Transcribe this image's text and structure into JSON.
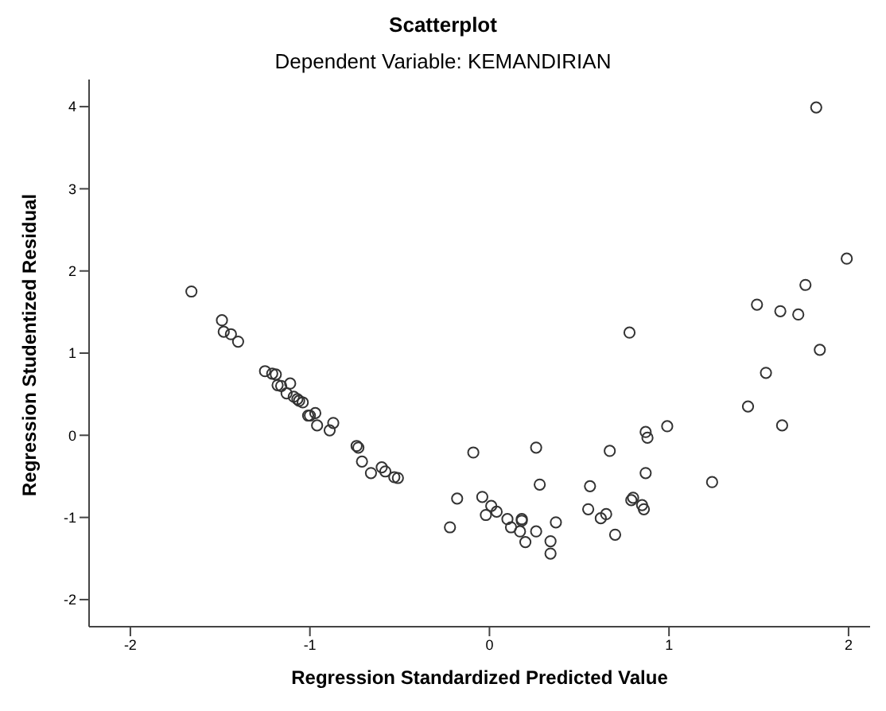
{
  "chart_data": {
    "type": "scatter",
    "title": "Scatterplot",
    "subtitle": "Dependent Variable: KEMANDIRIAN",
    "xlabel": "Regression Standardized Predicted Value",
    "ylabel": "Regression Studentized Residual",
    "marker": "circle",
    "grid": false,
    "xlim": [
      -2.23,
      2.12
    ],
    "ylim": [
      -2.33,
      4.33
    ],
    "xticks": [
      -2,
      -1,
      0,
      1,
      2
    ],
    "yticks": [
      -2,
      -1,
      0,
      1,
      2,
      3,
      4
    ],
    "series": [
      {
        "color": "#333333",
        "x": [
          -1.66,
          -1.49,
          -1.48,
          -1.44,
          -1.4,
          -1.25,
          -1.21,
          -1.19,
          -1.18,
          -1.16,
          -1.11,
          -1.13,
          -1.09,
          -1.07,
          -1.06,
          -1.04,
          -1.01,
          -1.0,
          -0.97,
          -0.96,
          -0.87,
          -0.89,
          -0.74,
          -0.73,
          -0.71,
          -0.66,
          -0.6,
          -0.58,
          -0.53,
          -0.51,
          -0.18,
          -0.09,
          -0.22,
          -0.04,
          -0.02,
          0.01,
          0.04,
          0.1,
          0.12,
          0.18,
          0.18,
          0.17,
          0.2,
          0.26,
          0.26,
          0.28,
          0.34,
          0.34,
          0.37,
          0.55,
          0.56,
          0.62,
          0.65,
          0.67,
          0.7,
          0.79,
          0.8,
          0.85,
          0.86,
          0.87,
          0.87,
          0.88,
          0.99,
          1.24,
          1.63,
          1.44,
          1.82,
          1.99,
          1.76,
          1.49,
          1.62,
          1.72,
          1.84,
          1.54,
          0.78
        ],
        "values": [
          1.75,
          1.4,
          1.26,
          1.23,
          1.14,
          0.78,
          0.75,
          0.74,
          0.61,
          0.6,
          0.63,
          0.51,
          0.47,
          0.44,
          0.42,
          0.4,
          0.24,
          0.24,
          0.27,
          0.12,
          0.15,
          0.06,
          -0.13,
          -0.15,
          -0.32,
          -0.46,
          -0.39,
          -0.44,
          -0.51,
          -0.52,
          -0.77,
          -0.21,
          -1.12,
          -0.75,
          -0.97,
          -0.86,
          -0.93,
          -1.02,
          -1.12,
          -1.02,
          -1.04,
          -1.17,
          -1.3,
          -1.17,
          -0.15,
          -0.6,
          -1.29,
          -1.44,
          -1.06,
          -0.9,
          -0.62,
          -1.01,
          -0.96,
          -0.19,
          -1.21,
          -0.79,
          -0.76,
          -0.85,
          -0.9,
          -0.46,
          0.04,
          -0.03,
          0.11,
          -0.57,
          0.12,
          0.35,
          3.99,
          2.15,
          1.83,
          1.59,
          1.51,
          1.47,
          1.04,
          0.76,
          1.25
        ]
      }
    ]
  }
}
